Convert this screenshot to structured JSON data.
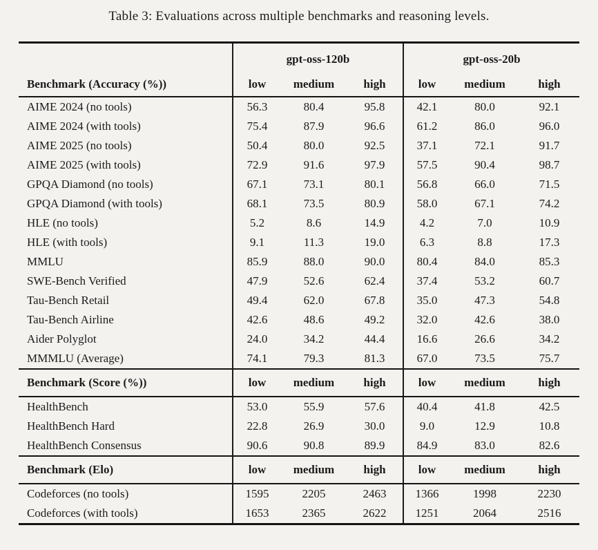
{
  "caption": "Table 3: Evaluations across multiple benchmarks and reasoning levels.",
  "colors": {
    "background": "#f3f2ef",
    "text": "#1b1b1b",
    "rule": "#141414"
  },
  "table": {
    "group_headers": [
      "gpt-oss-120b",
      "gpt-oss-20b"
    ],
    "level_headers": [
      "low",
      "medium",
      "high"
    ],
    "sections": [
      {
        "header": "Benchmark (Accuracy (%))",
        "rows": [
          {
            "label": "AIME 2024 (no tools)",
            "values": [
              "56.3",
              "80.4",
              "95.8",
              "42.1",
              "80.0",
              "92.1"
            ]
          },
          {
            "label": "AIME 2024 (with tools)",
            "values": [
              "75.4",
              "87.9",
              "96.6",
              "61.2",
              "86.0",
              "96.0"
            ]
          },
          {
            "label": "AIME 2025 (no tools)",
            "values": [
              "50.4",
              "80.0",
              "92.5",
              "37.1",
              "72.1",
              "91.7"
            ]
          },
          {
            "label": "AIME 2025 (with tools)",
            "values": [
              "72.9",
              "91.6",
              "97.9",
              "57.5",
              "90.4",
              "98.7"
            ]
          },
          {
            "label": "GPQA Diamond (no tools)",
            "values": [
              "67.1",
              "73.1",
              "80.1",
              "56.8",
              "66.0",
              "71.5"
            ]
          },
          {
            "label": "GPQA Diamond (with tools)",
            "values": [
              "68.1",
              "73.5",
              "80.9",
              "58.0",
              "67.1",
              "74.2"
            ]
          },
          {
            "label": "HLE (no tools)",
            "values": [
              "5.2",
              "8.6",
              "14.9",
              "4.2",
              "7.0",
              "10.9"
            ]
          },
          {
            "label": "HLE (with tools)",
            "values": [
              "9.1",
              "11.3",
              "19.0",
              "6.3",
              "8.8",
              "17.3"
            ]
          },
          {
            "label": "MMLU",
            "values": [
              "85.9",
              "88.0",
              "90.0",
              "80.4",
              "84.0",
              "85.3"
            ]
          },
          {
            "label": "SWE-Bench Verified",
            "values": [
              "47.9",
              "52.6",
              "62.4",
              "37.4",
              "53.2",
              "60.7"
            ]
          },
          {
            "label": "Tau-Bench Retail",
            "values": [
              "49.4",
              "62.0",
              "67.8",
              "35.0",
              "47.3",
              "54.8"
            ]
          },
          {
            "label": "Tau-Bench Airline",
            "values": [
              "42.6",
              "48.6",
              "49.2",
              "32.0",
              "42.6",
              "38.0"
            ]
          },
          {
            "label": "Aider Polyglot",
            "values": [
              "24.0",
              "34.2",
              "44.4",
              "16.6",
              "26.6",
              "34.2"
            ]
          },
          {
            "label": "MMMLU (Average)",
            "values": [
              "74.1",
              "79.3",
              "81.3",
              "67.0",
              "73.5",
              "75.7"
            ]
          }
        ]
      },
      {
        "header": "Benchmark (Score (%))",
        "rows": [
          {
            "label": "HealthBench",
            "values": [
              "53.0",
              "55.9",
              "57.6",
              "40.4",
              "41.8",
              "42.5"
            ]
          },
          {
            "label": "HealthBench Hard",
            "values": [
              "22.8",
              "26.9",
              "30.0",
              "9.0",
              "12.9",
              "10.8"
            ]
          },
          {
            "label": "HealthBench Consensus",
            "values": [
              "90.6",
              "90.8",
              "89.9",
              "84.9",
              "83.0",
              "82.6"
            ]
          }
        ]
      },
      {
        "header": "Benchmark (Elo)",
        "rows": [
          {
            "label": "Codeforces (no tools)",
            "values": [
              "1595",
              "2205",
              "2463",
              "1366",
              "1998",
              "2230"
            ]
          },
          {
            "label": "Codeforces (with tools)",
            "values": [
              "1653",
              "2365",
              "2622",
              "1251",
              "2064",
              "2516"
            ]
          }
        ]
      }
    ]
  }
}
